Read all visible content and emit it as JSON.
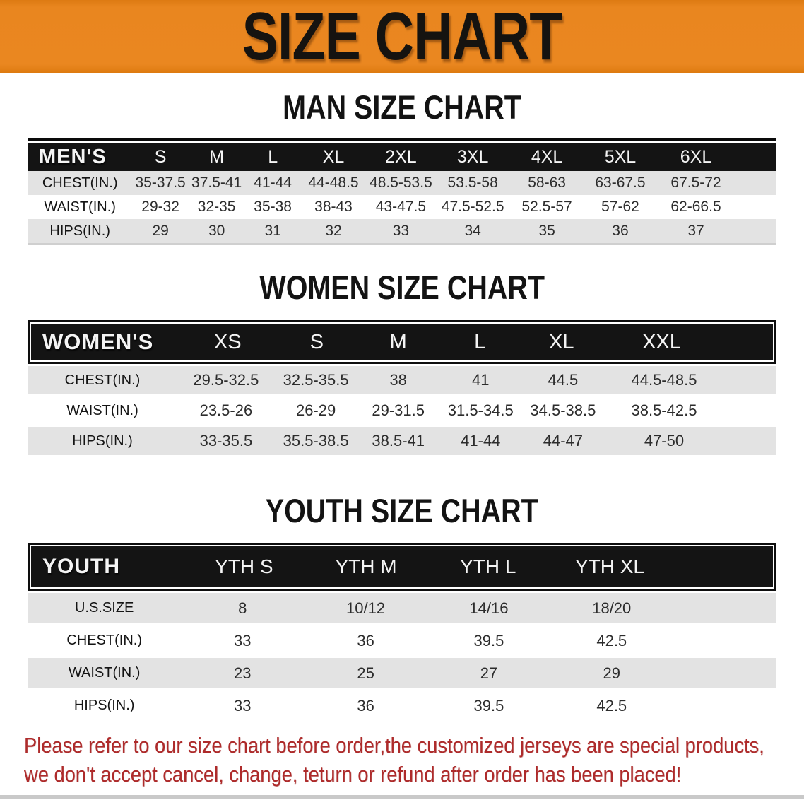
{
  "banner": {
    "title": "SIZE CHART"
  },
  "colors": {
    "banner_bg": "#E8831C",
    "table_header_bg": "#141414",
    "row_alt_bg": "#E3E3E3",
    "disclaimer_text": "#AE2B2B"
  },
  "men_chart": {
    "heading": "MAN SIZE CHART",
    "header": [
      "MEN'S",
      "S",
      "M",
      "L",
      "XL",
      "2XL",
      "3XL",
      "4XL",
      "5XL",
      "6XL"
    ],
    "rows": [
      {
        "label": "CHEST(IN.)",
        "values": [
          "35-37.5",
          "37.5-41",
          "41-44",
          "44-48.5",
          "48.5-53.5",
          "53.5-58",
          "58-63",
          "63-67.5",
          "67.5-72"
        ]
      },
      {
        "label": "WAIST(IN.)",
        "values": [
          "29-32",
          "32-35",
          "35-38",
          "38-43",
          "43-47.5",
          "47.5-52.5",
          "52.5-57",
          "57-62",
          "62-66.5"
        ]
      },
      {
        "label": "HIPS(IN.)",
        "values": [
          "29",
          "30",
          "31",
          "32",
          "33",
          "34",
          "35",
          "36",
          "37"
        ]
      }
    ]
  },
  "women_chart": {
    "heading": "WOMEN SIZE CHART",
    "header": [
      "WOMEN'S",
      "XS",
      "S",
      "M",
      "L",
      "XL",
      "XXL"
    ],
    "rows": [
      {
        "label": "CHEST(IN.)",
        "values": [
          "29.5-32.5",
          "32.5-35.5",
          "38",
          "41",
          "44.5",
          "44.5-48.5"
        ]
      },
      {
        "label": "WAIST(IN.)",
        "values": [
          "23.5-26",
          "26-29",
          "29-31.5",
          "31.5-34.5",
          "34.5-38.5",
          "38.5-42.5"
        ]
      },
      {
        "label": "HIPS(IN.)",
        "values": [
          "33-35.5",
          "35.5-38.5",
          "38.5-41",
          "41-44",
          "44-47",
          "47-50"
        ]
      }
    ]
  },
  "youth_chart": {
    "heading": "YOUTH SIZE CHART",
    "header": [
      "YOUTH",
      "YTH S",
      "YTH M",
      "YTH L",
      "YTH XL"
    ],
    "rows": [
      {
        "label": "U.S.SIZE",
        "values": [
          "8",
          "10/12",
          "14/16",
          "18/20"
        ]
      },
      {
        "label": "CHEST(IN.)",
        "values": [
          "33",
          "36",
          "39.5",
          "42.5"
        ]
      },
      {
        "label": "WAIST(IN.)",
        "values": [
          "23",
          "25",
          "27",
          "29"
        ]
      },
      {
        "label": "HIPS(IN.)",
        "values": [
          "33",
          "36",
          "39.5",
          "42.5"
        ]
      }
    ]
  },
  "disclaimer": {
    "line1": "Please refer to our size chart before order,the customized jerseys are special products,",
    "line2": "we don't accept cancel, change, teturn or refund after order has been placed!"
  }
}
